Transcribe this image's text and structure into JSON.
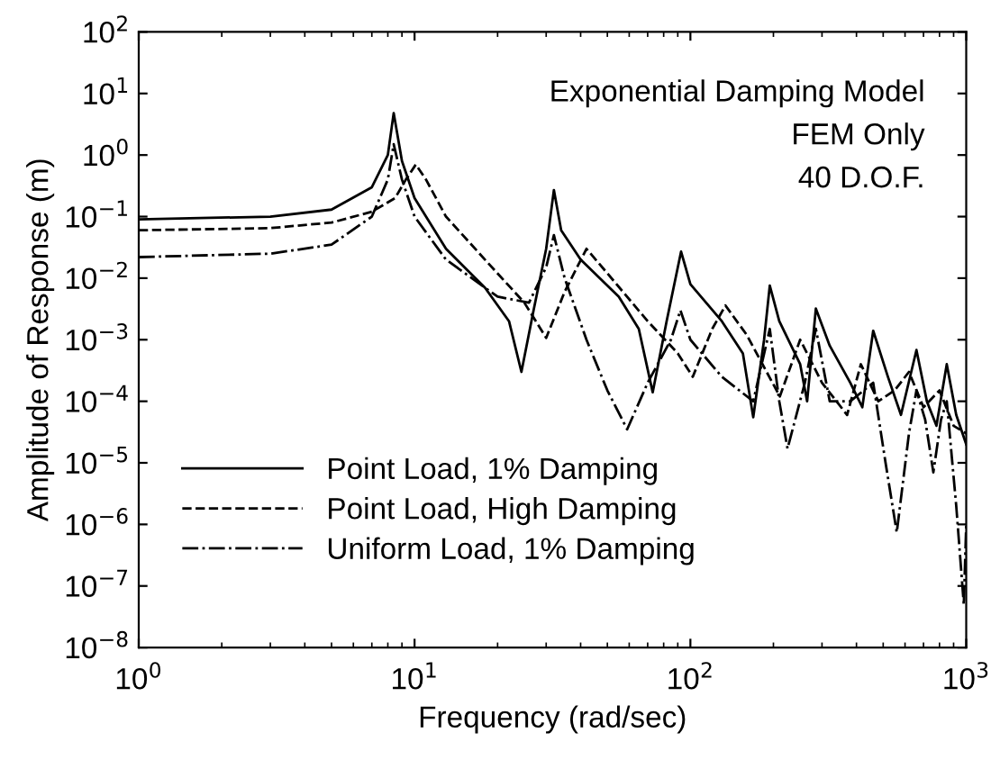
{
  "chart_data": {
    "type": "line",
    "xlabel": "Frequency (rad/sec)",
    "ylabel": "Amplitude of Response (m)",
    "log": "xy",
    "grid": false,
    "legend": "bottom left",
    "marker": "none",
    "annotations": [
      "Exponential Damping Model",
      "FEM Only",
      "40 D.O.F."
    ],
    "xlim": [
      1,
      1000
    ],
    "xticks": [
      {
        "value": 1,
        "label": "10$^{0}$"
      },
      {
        "value": 10,
        "label": "10$^{1}$"
      },
      {
        "value": 100,
        "label": "10$^{2}$"
      },
      {
        "value": 1000,
        "label": "10$^{3}$"
      }
    ],
    "ylim": [
      1e-08,
      100
    ],
    "yticks": [
      {
        "value": 1e-08,
        "label": "10$^{−8}$"
      },
      {
        "value": 1e-07,
        "label": "10$^{−7}$"
      },
      {
        "value": 1e-06,
        "label": "10$^{−6}$"
      },
      {
        "value": 1e-05,
        "label": "10$^{−5}$"
      },
      {
        "value": 0.0001,
        "label": "10$^{−4}$"
      },
      {
        "value": 0.001,
        "label": "10$^{−3}$"
      },
      {
        "value": 0.01,
        "label": "10$^{−2}$"
      },
      {
        "value": 0.1,
        "label": "10$^{−1}$"
      },
      {
        "value": 1,
        "label": "10$^{0}$"
      },
      {
        "value": 10,
        "label": "10$^{1}$"
      },
      {
        "value": 100,
        "label": "10$^{2}$"
      }
    ],
    "series": [
      {
        "name": "Point Load, 1% Damping",
        "color": "#000000",
        "line_style": "solid",
        "x": [
          1,
          3,
          5,
          7,
          8,
          8.4,
          9,
          10,
          13,
          18,
          22,
          24.4,
          27,
          30,
          32,
          34,
          40,
          55,
          65,
          73,
          82,
          92.5,
          100,
          130,
          155,
          169,
          185,
          194,
          210,
          250,
          265,
          285,
          320,
          380,
          420,
          460,
          520,
          580,
          660,
          720,
          780,
          850,
          920,
          1000
        ],
        "values": [
          0.09,
          0.1,
          0.13,
          0.3,
          1.0,
          4.8,
          0.8,
          0.2,
          0.03,
          0.007,
          0.002,
          0.0003,
          0.003,
          0.03,
          0.27,
          0.06,
          0.02,
          0.005,
          0.0015,
          0.00014,
          0.002,
          0.027,
          0.008,
          0.002,
          0.0006,
          5.5e-05,
          0.001,
          0.0076,
          0.002,
          0.0004,
          0.0001,
          0.0032,
          0.0008,
          0.0002,
          8e-05,
          0.0014,
          0.00025,
          6e-05,
          0.00068,
          0.0001,
          4e-05,
          0.0004,
          6e-05,
          2e-05
        ]
      },
      {
        "name": "Point Load, High Damping",
        "color": "#000000",
        "line_style": "dashed",
        "x": [
          1,
          3,
          5,
          7,
          8.5,
          9.3,
          10.1,
          11,
          13,
          18,
          25,
          30,
          35,
          42,
          50,
          70,
          90,
          102,
          120,
          134,
          160,
          211,
          250,
          300,
          370,
          415,
          480,
          550,
          620,
          700,
          800,
          900,
          1000
        ],
        "values": [
          0.06,
          0.065,
          0.08,
          0.12,
          0.2,
          0.4,
          0.7,
          0.4,
          0.1,
          0.02,
          0.004,
          0.00107,
          0.006,
          0.03,
          0.012,
          0.002,
          0.0006,
          0.00025,
          0.0015,
          0.0036,
          0.0012,
          0.00012,
          0.001,
          0.0002,
          6e-05,
          0.0004,
          0.0001,
          0.00015,
          0.0003,
          8e-05,
          0.00015,
          4e-05,
          3e-05
        ]
      },
      {
        "name": "Uniform Load, 1% Damping",
        "color": "#000000",
        "line_style": "dashdot",
        "x": [
          1,
          3,
          5,
          7,
          8,
          8.4,
          9,
          10,
          13,
          20,
          26,
          30,
          32,
          35,
          42,
          50,
          59,
          70,
          85,
          92,
          100,
          130,
          169,
          194,
          210,
          225,
          260,
          285,
          320,
          380,
          460,
          510,
          560,
          620,
          660,
          710,
          760,
          810,
          850,
          920,
          980,
          1000
        ],
        "values": [
          0.022,
          0.025,
          0.035,
          0.1,
          0.4,
          1.5,
          0.4,
          0.1,
          0.02,
          0.005,
          0.004,
          0.015,
          0.05,
          0.01,
          0.001,
          0.00015,
          3.5e-05,
          0.0002,
          0.001,
          0.003,
          0.001,
          0.00025,
          0.0001,
          0.0015,
          0.0001,
          1.7e-05,
          0.0002,
          0.0015,
          0.0001,
          0.0001,
          0.0002,
          1e-05,
          7.4e-07,
          3e-05,
          0.00015,
          5e-05,
          7e-06,
          5e-05,
          0.0001,
          2e-06,
          5e-08,
          1e-06
        ]
      }
    ]
  }
}
